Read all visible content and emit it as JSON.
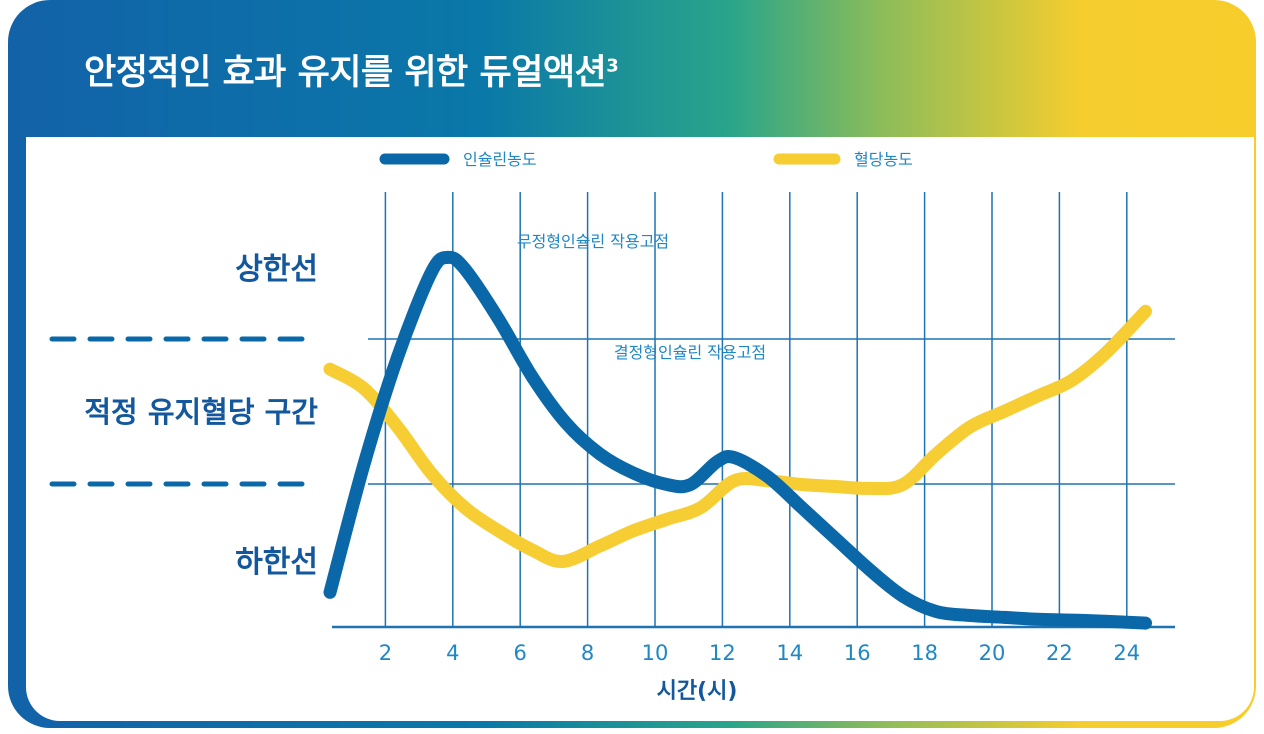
{
  "header": {
    "title": "안정적인 효과 유지를 위한 듀얼액션",
    "title_superscript": "3"
  },
  "colors": {
    "insulin": "#0a68a8",
    "glucose": "#f6cd32",
    "grid": "#1f73b0",
    "axis_text": "#1f87c4",
    "label_text": "#13579c"
  },
  "legend": {
    "insulin_label": "인슐린농도",
    "glucose_label": "혈당농도"
  },
  "annotations": {
    "amorphous": "무정형인슐린 작용고점",
    "crystalline": "결정형인슐린 작용고점"
  },
  "y_labels": {
    "upper": "상한선",
    "range": "적정 유지혈당 구간",
    "lower": "하한선"
  },
  "chart_data": {
    "type": "line",
    "xlabel": "시간(시)",
    "ylabel": "",
    "x_ticks": [
      2,
      4,
      6,
      8,
      10,
      12,
      14,
      16,
      18,
      20,
      22,
      24
    ],
    "xlim": [
      0,
      24.6
    ],
    "series": [
      {
        "name": "인슐린농도",
        "x": [
          0,
          1,
          2,
          3,
          3.5,
          4,
          5,
          6,
          7,
          8,
          9,
          10,
          10.7,
          11.5,
          12,
          13,
          14,
          15,
          16,
          17,
          18,
          19,
          20,
          21,
          22,
          23,
          24.2
        ],
        "y": [
          9,
          42,
          70,
          92,
          96,
          93,
          80,
          65,
          53,
          45,
          40,
          37,
          37,
          43,
          44,
          39,
          31,
          23,
          15,
          8,
          4,
          3,
          2.5,
          2,
          1.8,
          1.5,
          1
        ]
      },
      {
        "name": "혈당농도",
        "x": [
          0,
          1,
          2,
          3,
          4,
          5,
          6,
          6.9,
          8,
          9,
          10,
          11,
          12,
          13,
          14,
          15,
          16,
          17,
          18,
          19,
          20,
          21,
          22,
          23,
          24.2
        ],
        "y": [
          67,
          62,
          52,
          40,
          31,
          25,
          20,
          17,
          21,
          25,
          28,
          31,
          38,
          38,
          37,
          36.5,
          36,
          37,
          45,
          52,
          56,
          60,
          64,
          71,
          82
        ]
      }
    ]
  }
}
